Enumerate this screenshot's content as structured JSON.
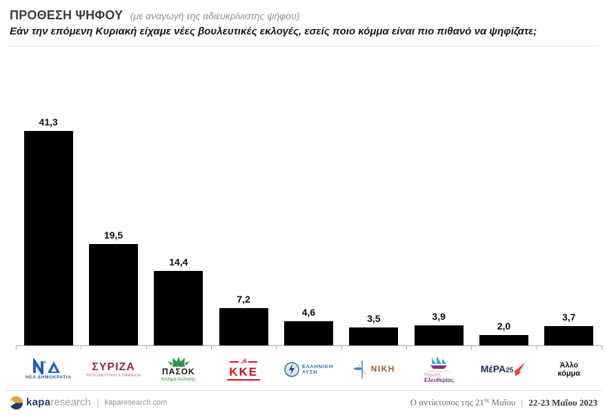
{
  "header": {
    "title": "ΠΡΟΘΕΣΗ ΨΗΦΟΥ",
    "title_note": "(με αναγωγή της αδιευκρίνιστης ψήφου)",
    "subtitle": "Εάν την επόμενη Κυριακή είχαμε νέες βουλευτικές εκλογές, εσείς ποιο κόμμα είναι πιο πιθανό να ψηφίζατε;"
  },
  "chart_data": {
    "type": "bar",
    "title": "ΠΡΟΘΕΣΗ ΨΗΦΟΥ (με αναγωγή της αδιευκρίνιστης ψήφου)",
    "categories": [
      "ΝΕΑ ΔΗΜΟΚΡΑΤΙΑ",
      "ΣΥΡΙΖΑ ΠΡΟΟΔΕΥΤΙΚΗ ΣΥΜΜΑΧΙΑ",
      "ΠΑΣΟΚ Κίνημα Αλλαγής",
      "ΚΚΕ",
      "ΕΛΛΗΝΙΚΗ ΛΥΣΗ",
      "ΝΙΚΗ",
      "ΠΛΕΥΣΗ ΕΛΕΥΘΕΡΙΑΣ",
      "ΜέΡΑ25",
      "Άλλο κόμμα"
    ],
    "values": [
      41.3,
      19.5,
      14.4,
      7.2,
      4.6,
      3.5,
      3.9,
      2.0,
      3.7
    ],
    "value_labels": [
      "41,3",
      "19,5",
      "14,4",
      "7,2",
      "4,6",
      "3,5",
      "3,9",
      "2,0",
      "3,7"
    ],
    "bar_color": "#000000",
    "axis_color": "#a6a6a6",
    "xlabel": "",
    "ylabel": "",
    "ylim": [
      0,
      45
    ],
    "grid": false,
    "legend": false
  },
  "parties": [
    {
      "name": "ΝΕΑ ΔΗΜΟΚΡΑΤΙΑ",
      "color": "#1d64b0"
    },
    {
      "name": "ΣΥΡΙΖΑ",
      "sub": "ΠΡΟΟΔΕΥΤΙΚΗ ΣΥΜΜΑΧΙΑ",
      "color": "#8e3039"
    },
    {
      "name": "ΠΑΣΟΚ",
      "sub": "Κίνημα Αλλαγής",
      "color": "#2e9641"
    },
    {
      "name": "ΚΚΕ",
      "color": "#d40f1e"
    },
    {
      "name_line1": "ΕΛΛΗΝΙΚΗ",
      "name_line2": "ΛΥΣΗ",
      "color": "#2b6fb5"
    },
    {
      "name": "ΝΙΚΗ",
      "color": "#a4572c"
    },
    {
      "name_line1": "Πλεύση",
      "name_line2": "Ελευθερίας",
      "sail_color": "#35b2c4",
      "hull_color": "#8e2d8e"
    },
    {
      "name": "ΜέΡΑ",
      "suffix": "25",
      "color": "#1d2b5a",
      "bird_color": "#e8452f"
    },
    {
      "name_line1": "Άλλο",
      "name_line2": "κόμμα"
    }
  ],
  "footer": {
    "brand_bold": "kapa",
    "brand_light": "research",
    "divider": "|",
    "url": "kaparesearch.com",
    "note_prefix": "Ο αντίκτυπος της 21",
    "note_sup": "ης",
    "note_suffix": " Μαΐου",
    "date": "22-23 Μαΐου 2023"
  }
}
